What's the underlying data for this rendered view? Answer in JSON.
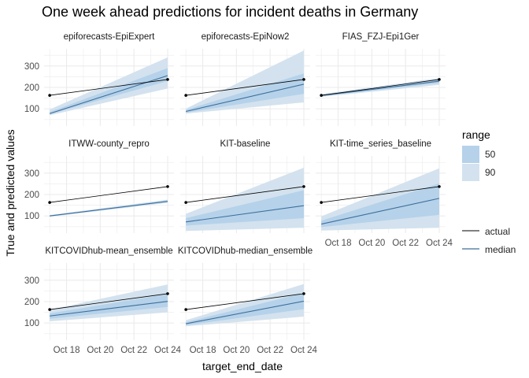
{
  "chart_data": {
    "type": "line",
    "title": "One week ahead predictions for incident deaths in Germany",
    "xlabel": "target_end_date",
    "ylabel": "True and predicted values",
    "x": [
      "2020-10-17",
      "2020-10-24"
    ],
    "x_ticks": [
      {
        "date": "2020-10-18",
        "label": "Oct 18"
      },
      {
        "date": "2020-10-20",
        "label": "Oct 20"
      },
      {
        "date": "2020-10-22",
        "label": "Oct 22"
      },
      {
        "date": "2020-10-24",
        "label": "Oct 24"
      }
    ],
    "y_ticks": [
      100,
      200,
      300
    ],
    "xlim": [
      "2020-10-16T16:00",
      "2020-10-24T09:00"
    ],
    "ylim": [
      20,
      380
    ],
    "grid": true,
    "legend": {
      "placement": "right",
      "range_title": "range",
      "range_entries": [
        {
          "label": "50",
          "color": "#b5d2ea"
        },
        {
          "label": "90",
          "color": "#d3e2ee"
        }
      ],
      "line_entries": [
        {
          "label": "actual",
          "color": "#000000"
        },
        {
          "label": "median",
          "color": "#3f6e9a"
        }
      ]
    },
    "actual": [
      163,
      237
    ],
    "panels": [
      {
        "name": "epiforecasts-EpiExpert",
        "median": [
          78,
          255
        ],
        "q50": [
          [
            75,
            85
          ],
          [
            230,
            290
          ]
        ],
        "q90": [
          [
            70,
            97
          ],
          [
            195,
            340
          ]
        ]
      },
      {
        "name": "epiforecasts-EpiNow2",
        "median": [
          88,
          215
        ],
        "q50": [
          [
            82,
            95
          ],
          [
            170,
            265
          ]
        ],
        "q90": [
          [
            78,
            101
          ],
          [
            130,
            372
          ]
        ]
      },
      {
        "name": "FIAS_FZJ-Epi1Ger",
        "median": [
          162,
          229
        ],
        "q50": [
          [
            159,
            165
          ],
          [
            220,
            237
          ]
        ],
        "q90": [
          [
            156,
            169
          ],
          [
            212,
            244
          ]
        ]
      },
      {
        "name": "ITWW-county_repro",
        "median": [
          100,
          168
        ],
        "q50": [
          [
            98,
            102
          ],
          [
            165,
            172
          ]
        ],
        "q90": [
          [
            96,
            104
          ],
          [
            161,
            176
          ]
        ]
      },
      {
        "name": "KIT-baseline",
        "median": [
          72,
          148
        ],
        "q50": [
          [
            55,
            90
          ],
          [
            90,
            220
          ]
        ],
        "q90": [
          [
            30,
            110
          ],
          [
            45,
            325
          ]
        ]
      },
      {
        "name": "KIT-time_series_baseline",
        "median": [
          62,
          182
        ],
        "q50": [
          [
            48,
            78
          ],
          [
            105,
            252
          ]
        ],
        "q90": [
          [
            32,
            98
          ],
          [
            45,
            322
          ]
        ]
      },
      {
        "name": "KITCOVIDhub-mean_ensemble",
        "median": [
          133,
          201
        ],
        "q50": [
          [
            120,
            145
          ],
          [
            175,
            235
          ]
        ],
        "q90": [
          [
            108,
            162
          ],
          [
            150,
            280
          ]
        ]
      },
      {
        "name": "KITCOVIDhub-median_ensemble",
        "median": [
          97,
          202
        ],
        "q50": [
          [
            90,
            104
          ],
          [
            165,
            240
          ]
        ],
        "q90": [
          [
            85,
            113
          ],
          [
            130,
            282
          ]
        ]
      }
    ]
  }
}
